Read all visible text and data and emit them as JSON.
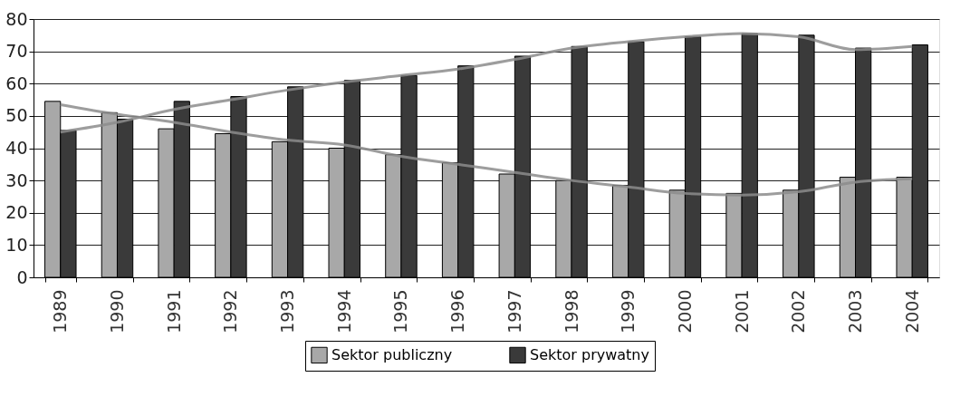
{
  "chart_data": {
    "type": "bar",
    "categories": [
      "1989",
      "1990",
      "1991",
      "1992",
      "1993",
      "1994",
      "1995",
      "1996",
      "1997",
      "1998",
      "1999",
      "2000",
      "2001",
      "2002",
      "2003",
      "2004"
    ],
    "series": [
      {
        "name": "Sektor publiczny",
        "color": "#a8a8a8",
        "values": [
          54.5,
          51,
          46,
          44.5,
          42,
          40,
          38,
          35.5,
          32,
          30,
          28.5,
          27,
          26,
          27,
          31,
          31
        ]
      },
      {
        "name": "Sektor prywatny",
        "color": "#3a3a3a",
        "values": [
          45.5,
          49,
          54.5,
          56,
          59,
          61,
          62.5,
          65.5,
          68.5,
          71.5,
          73,
          74.5,
          75.5,
          75,
          71,
          72
        ]
      },
      {
        "type": "line",
        "color": "#8c8c8c",
        "values": [
          53.5,
          50.5,
          48,
          45,
          42.5,
          41,
          37.5,
          35,
          32.5,
          30,
          28,
          26,
          25.5,
          26.5,
          29.5,
          30.5
        ]
      },
      {
        "type": "line",
        "color": "#8c8c8c",
        "values": [
          45,
          48,
          52,
          55,
          58,
          60.5,
          62.5,
          64.5,
          67.5,
          71,
          73,
          74.5,
          75.5,
          74.5,
          70.5,
          71.5
        ]
      }
    ],
    "ylim": [
      0,
      80
    ],
    "yticks": [
      0,
      10,
      20,
      30,
      40,
      50,
      60,
      70,
      80
    ],
    "grid": "y",
    "legend": "bottom"
  }
}
